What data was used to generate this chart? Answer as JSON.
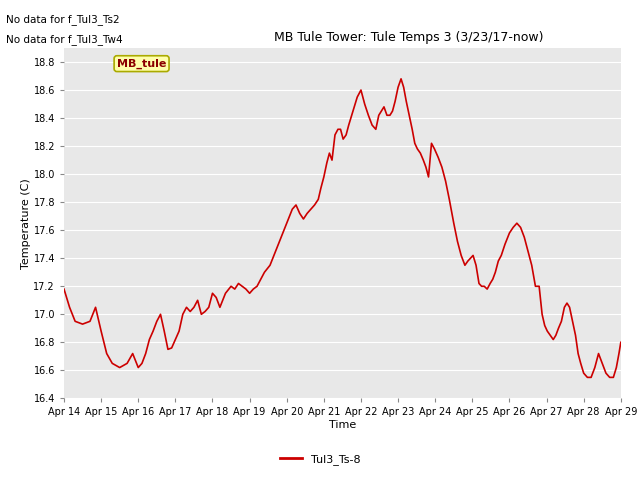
{
  "title": "MB Tule Tower: Tule Temps 3 (3/23/17-now)",
  "xlabel": "Time",
  "ylabel": "Temperature (C)",
  "no_data_text": [
    "No data for f_Tul3_Ts2",
    "No data for f_Tul3_Tw4"
  ],
  "legend_label": "Tul3_Ts-8",
  "mb_tule_label": "MB_tule",
  "line_color": "#cc0000",
  "background_color": "#e8e8e8",
  "ylim": [
    16.4,
    18.9
  ],
  "yticks": [
    16.4,
    16.6,
    16.8,
    17.0,
    17.2,
    17.4,
    17.6,
    17.8,
    18.0,
    18.2,
    18.4,
    18.6,
    18.8
  ],
  "x_labels": [
    "Apr 14",
    "Apr 15",
    "Apr 16",
    "Apr 17",
    "Apr 18",
    "Apr 19",
    "Apr 20",
    "Apr 21",
    "Apr 22",
    "Apr 23",
    "Apr 24",
    "Apr 25",
    "Apr 26",
    "Apr 27",
    "Apr 28",
    "Apr 29"
  ],
  "x_values": [
    0,
    1,
    2,
    3,
    4,
    5,
    6,
    7,
    8,
    9,
    10,
    11,
    12,
    13,
    14,
    15
  ],
  "data_x": [
    0.0,
    0.15,
    0.3,
    0.5,
    0.7,
    0.85,
    1.0,
    1.15,
    1.3,
    1.5,
    1.7,
    1.85,
    2.0,
    2.1,
    2.2,
    2.3,
    2.4,
    2.5,
    2.6,
    2.7,
    2.8,
    2.9,
    3.0,
    3.1,
    3.2,
    3.3,
    3.4,
    3.5,
    3.6,
    3.7,
    3.8,
    3.9,
    4.0,
    4.1,
    4.2,
    4.35,
    4.5,
    4.6,
    4.7,
    4.8,
    4.9,
    5.0,
    5.1,
    5.2,
    5.3,
    5.4,
    5.55,
    5.7,
    5.85,
    6.0,
    6.15,
    6.25,
    6.35,
    6.45,
    6.55,
    6.65,
    6.75,
    6.85,
    6.92,
    7.0,
    7.08,
    7.15,
    7.22,
    7.3,
    7.38,
    7.45,
    7.52,
    7.6,
    7.67,
    7.75,
    7.82,
    7.9,
    8.0,
    8.1,
    8.2,
    8.3,
    8.4,
    8.48,
    8.55,
    8.62,
    8.7,
    8.78,
    8.85,
    8.92,
    9.0,
    9.08,
    9.15,
    9.22,
    9.3,
    9.38,
    9.45,
    9.52,
    9.6,
    9.68,
    9.75,
    9.82,
    9.9,
    9.98,
    10.08,
    10.18,
    10.28,
    10.38,
    10.5,
    10.6,
    10.7,
    10.8,
    10.88,
    10.95,
    11.02,
    11.1,
    11.18,
    11.25,
    11.32,
    11.4,
    11.48,
    11.55,
    11.62,
    11.7,
    11.78,
    11.88,
    12.0,
    12.1,
    12.2,
    12.3,
    12.4,
    12.5,
    12.6,
    12.7,
    12.8,
    12.88,
    12.95,
    13.02,
    13.1,
    13.18,
    13.25,
    13.32,
    13.4,
    13.48,
    13.55,
    13.62,
    13.7,
    13.78,
    13.85,
    13.92,
    14.0,
    14.1,
    14.2,
    14.3,
    14.4,
    14.5,
    14.6,
    14.7,
    14.8,
    14.88,
    14.95,
    15.0
  ],
  "data_y": [
    17.18,
    17.05,
    16.95,
    16.93,
    16.95,
    17.05,
    16.88,
    16.72,
    16.65,
    16.62,
    16.65,
    16.72,
    16.62,
    16.65,
    16.72,
    16.82,
    16.88,
    16.95,
    17.0,
    16.88,
    16.75,
    16.76,
    16.82,
    16.88,
    17.0,
    17.05,
    17.02,
    17.05,
    17.1,
    17.0,
    17.02,
    17.05,
    17.15,
    17.12,
    17.05,
    17.15,
    17.2,
    17.18,
    17.22,
    17.2,
    17.18,
    17.15,
    17.18,
    17.2,
    17.25,
    17.3,
    17.35,
    17.45,
    17.55,
    17.65,
    17.75,
    17.78,
    17.72,
    17.68,
    17.72,
    17.75,
    17.78,
    17.82,
    17.9,
    17.98,
    18.08,
    18.15,
    18.1,
    18.28,
    18.32,
    18.32,
    18.25,
    18.28,
    18.35,
    18.42,
    18.48,
    18.55,
    18.6,
    18.5,
    18.42,
    18.35,
    18.32,
    18.42,
    18.45,
    18.48,
    18.42,
    18.42,
    18.45,
    18.52,
    18.62,
    18.68,
    18.62,
    18.52,
    18.42,
    18.32,
    18.22,
    18.18,
    18.15,
    18.1,
    18.05,
    17.98,
    18.22,
    18.18,
    18.12,
    18.05,
    17.95,
    17.82,
    17.65,
    17.52,
    17.42,
    17.35,
    17.38,
    17.4,
    17.42,
    17.35,
    17.22,
    17.2,
    17.2,
    17.18,
    17.22,
    17.25,
    17.3,
    17.38,
    17.42,
    17.5,
    17.58,
    17.62,
    17.65,
    17.62,
    17.55,
    17.45,
    17.35,
    17.2,
    17.2,
    17.0,
    16.92,
    16.88,
    16.85,
    16.82,
    16.85,
    16.9,
    16.95,
    17.05,
    17.08,
    17.05,
    16.95,
    16.85,
    16.72,
    16.65,
    16.58,
    16.55,
    16.55,
    16.62,
    16.72,
    16.65,
    16.58,
    16.55,
    16.55,
    16.62,
    16.72,
    16.8
  ]
}
